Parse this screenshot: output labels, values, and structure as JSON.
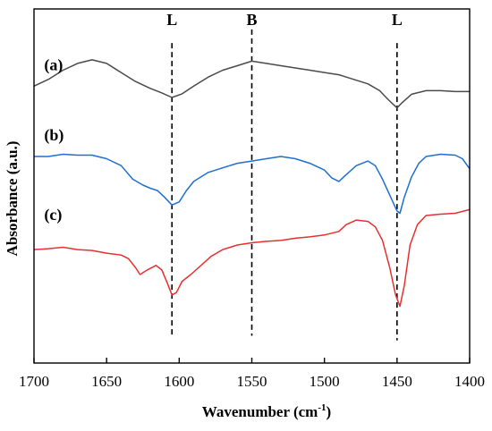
{
  "chart_data": {
    "type": "line",
    "title": "",
    "xlabel": "Wavenumber (cm",
    "xlabel_sup": "-1",
    "xlabel_end": ")",
    "ylabel": "Absorbance (a.u.)",
    "xlim": [
      1700,
      1400
    ],
    "x_reversed": true,
    "y_ticks_shown": false,
    "ylim": [
      -3.0,
      4.8
    ],
    "xticks": [
      1700,
      1650,
      1600,
      1550,
      1500,
      1450,
      1400
    ],
    "xtick_labels": [
      "1700",
      "1650",
      "1600",
      "1550",
      "1500",
      "1450",
      "1400"
    ],
    "grid": false,
    "legend": "none",
    "series": [
      {
        "name": "(a)",
        "color": "#4a4a4a",
        "points": [
          [
            1700,
            3.1
          ],
          [
            1690,
            3.25
          ],
          [
            1680,
            3.45
          ],
          [
            1670,
            3.6
          ],
          [
            1660,
            3.68
          ],
          [
            1650,
            3.6
          ],
          [
            1640,
            3.4
          ],
          [
            1630,
            3.2
          ],
          [
            1620,
            3.05
          ],
          [
            1612,
            2.95
          ],
          [
            1605,
            2.85
          ],
          [
            1598,
            2.93
          ],
          [
            1590,
            3.1
          ],
          [
            1580,
            3.3
          ],
          [
            1570,
            3.45
          ],
          [
            1560,
            3.55
          ],
          [
            1550,
            3.65
          ],
          [
            1540,
            3.6
          ],
          [
            1530,
            3.55
          ],
          [
            1520,
            3.5
          ],
          [
            1510,
            3.45
          ],
          [
            1500,
            3.4
          ],
          [
            1490,
            3.35
          ],
          [
            1480,
            3.25
          ],
          [
            1470,
            3.15
          ],
          [
            1462,
            3.0
          ],
          [
            1456,
            2.8
          ],
          [
            1450,
            2.62
          ],
          [
            1447,
            2.72
          ],
          [
            1440,
            2.92
          ],
          [
            1430,
            3.0
          ],
          [
            1420,
            3.0
          ],
          [
            1410,
            2.98
          ],
          [
            1400,
            2.98
          ]
        ]
      },
      {
        "name": "(b)",
        "color": "#1f6fd0",
        "points": [
          [
            1700,
            1.55
          ],
          [
            1690,
            1.55
          ],
          [
            1680,
            1.6
          ],
          [
            1670,
            1.58
          ],
          [
            1660,
            1.58
          ],
          [
            1650,
            1.5
          ],
          [
            1640,
            1.35
          ],
          [
            1632,
            1.05
          ],
          [
            1625,
            0.92
          ],
          [
            1620,
            0.85
          ],
          [
            1615,
            0.8
          ],
          [
            1610,
            0.65
          ],
          [
            1605,
            0.48
          ],
          [
            1600,
            0.55
          ],
          [
            1595,
            0.8
          ],
          [
            1590,
            1.0
          ],
          [
            1580,
            1.2
          ],
          [
            1570,
            1.3
          ],
          [
            1560,
            1.4
          ],
          [
            1550,
            1.45
          ],
          [
            1540,
            1.5
          ],
          [
            1530,
            1.55
          ],
          [
            1520,
            1.5
          ],
          [
            1510,
            1.4
          ],
          [
            1500,
            1.25
          ],
          [
            1495,
            1.08
          ],
          [
            1490,
            1.0
          ],
          [
            1485,
            1.15
          ],
          [
            1478,
            1.35
          ],
          [
            1470,
            1.45
          ],
          [
            1465,
            1.35
          ],
          [
            1460,
            1.05
          ],
          [
            1455,
            0.7
          ],
          [
            1450,
            0.35
          ],
          [
            1448,
            0.3
          ],
          [
            1445,
            0.65
          ],
          [
            1440,
            1.1
          ],
          [
            1435,
            1.4
          ],
          [
            1430,
            1.55
          ],
          [
            1420,
            1.6
          ],
          [
            1410,
            1.58
          ],
          [
            1405,
            1.5
          ],
          [
            1400,
            1.28
          ]
        ]
      },
      {
        "name": "(c)",
        "color": "#e83030",
        "points": [
          [
            1700,
            -0.5
          ],
          [
            1690,
            -0.48
          ],
          [
            1680,
            -0.45
          ],
          [
            1670,
            -0.5
          ],
          [
            1660,
            -0.52
          ],
          [
            1650,
            -0.58
          ],
          [
            1640,
            -0.62
          ],
          [
            1635,
            -0.7
          ],
          [
            1630,
            -0.9
          ],
          [
            1627,
            -1.05
          ],
          [
            1622,
            -0.95
          ],
          [
            1616,
            -0.85
          ],
          [
            1612,
            -0.95
          ],
          [
            1608,
            -1.25
          ],
          [
            1605,
            -1.5
          ],
          [
            1602,
            -1.45
          ],
          [
            1598,
            -1.2
          ],
          [
            1592,
            -1.05
          ],
          [
            1585,
            -0.85
          ],
          [
            1578,
            -0.65
          ],
          [
            1570,
            -0.5
          ],
          [
            1560,
            -0.4
          ],
          [
            1550,
            -0.35
          ],
          [
            1540,
            -0.32
          ],
          [
            1530,
            -0.3
          ],
          [
            1520,
            -0.25
          ],
          [
            1510,
            -0.22
          ],
          [
            1500,
            -0.18
          ],
          [
            1490,
            -0.1
          ],
          [
            1485,
            0.05
          ],
          [
            1478,
            0.15
          ],
          [
            1470,
            0.12
          ],
          [
            1465,
            0.0
          ],
          [
            1460,
            -0.3
          ],
          [
            1455,
            -0.9
          ],
          [
            1451,
            -1.5
          ],
          [
            1448,
            -1.75
          ],
          [
            1445,
            -1.3
          ],
          [
            1441,
            -0.4
          ],
          [
            1436,
            0.05
          ],
          [
            1430,
            0.25
          ],
          [
            1420,
            0.28
          ],
          [
            1410,
            0.3
          ],
          [
            1400,
            0.38
          ]
        ]
      }
    ],
    "series_labels": [
      {
        "text": "(a)",
        "x": 1693,
        "y": 3.45
      },
      {
        "text": "(b)",
        "x": 1693,
        "y": 1.9
      },
      {
        "text": "(c)",
        "x": 1693,
        "y": 0.15
      }
    ],
    "reference_lines": [
      {
        "label": "L",
        "x": 1605,
        "y_top": 4.05,
        "y_bottom": -2.45
      },
      {
        "label": "B",
        "x": 1550,
        "y_top": 4.35,
        "y_bottom": -2.4
      },
      {
        "label": "L",
        "x": 1450,
        "y_top": 4.05,
        "y_bottom": -2.5
      }
    ],
    "reference_label_y": 4.45
  }
}
